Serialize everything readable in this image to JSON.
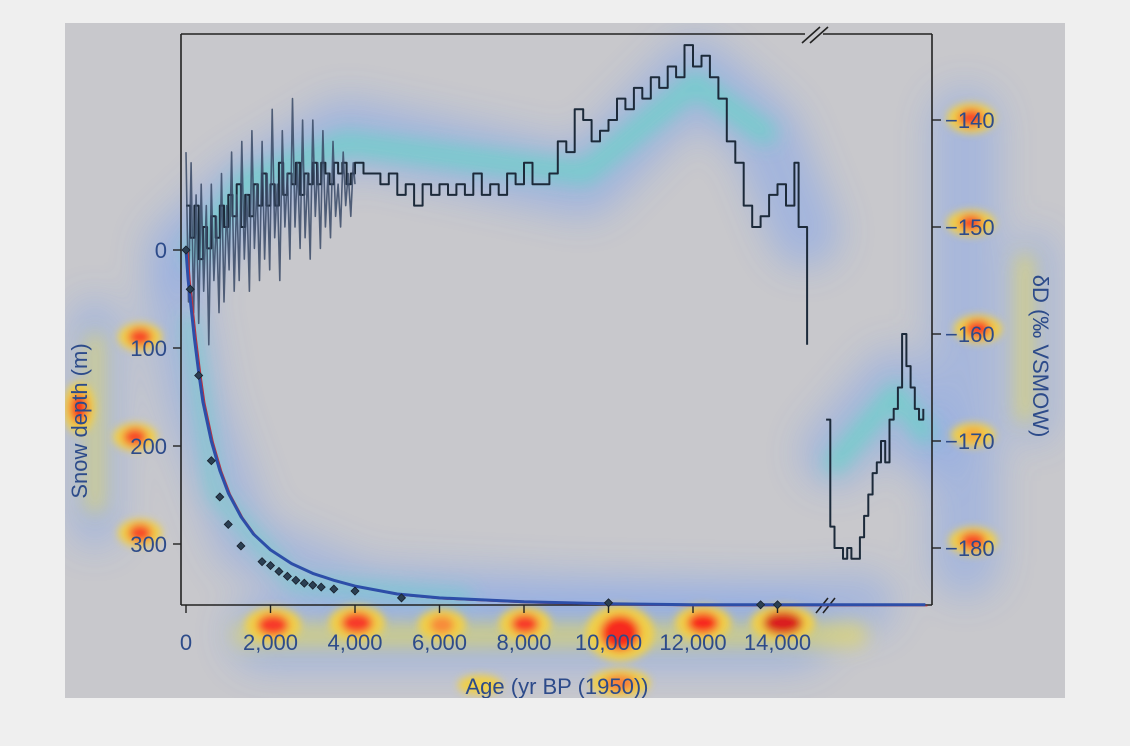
{
  "chart_data": {
    "type": "line",
    "xlabel": "Age (yr BP (1950))",
    "ylabel_left": "Snow depth (m)",
    "ylabel_right": "δD (‰ VSMOW)",
    "x_ticks": [
      "0",
      "2,000",
      "4,000",
      "6,000",
      "8,000",
      "10,000",
      "12,000",
      "14,000"
    ],
    "x_tick_values": [
      0,
      2000,
      4000,
      6000,
      8000,
      10000,
      12000,
      14000
    ],
    "left_ticks": [
      "0",
      "100",
      "200",
      "300"
    ],
    "left_tick_values": [
      0,
      100,
      200,
      300
    ],
    "right_ticks": [
      "−140",
      "−150",
      "−160",
      "−170",
      "−180"
    ],
    "right_tick_values": [
      -140,
      -150,
      -160,
      -170,
      -180
    ],
    "xlim": [
      0,
      17500
    ],
    "axis_break_x": 15000,
    "ylim_left": [
      -220,
      365
    ],
    "ylim_right": [
      -185,
      -130
    ],
    "heatmap_overlay": true,
    "series": [
      {
        "axis": "right",
        "style": "step",
        "color": "#1c2a3a",
        "x": [
          0,
          100,
          200,
          300,
          400,
          500,
          600,
          700,
          800,
          900,
          1000,
          1100,
          1200,
          1300,
          1400,
          1500,
          1600,
          1700,
          1800,
          1900,
          2000,
          2100,
          2200,
          2300,
          2400,
          2500,
          2600,
          2700,
          2800,
          2900,
          3000,
          3100,
          3200,
          3300,
          3400,
          3500,
          3600,
          3700,
          3800,
          3900,
          4000,
          4200,
          4400,
          4600,
          4800,
          5000,
          5200,
          5400,
          5600,
          5800,
          6000,
          6200,
          6400,
          6600,
          6800,
          7000,
          7200,
          7400,
          7600,
          7800,
          8000,
          8200,
          8400,
          8600,
          8800,
          9000,
          9200,
          9400,
          9600,
          9800,
          10000,
          10200,
          10400,
          10600,
          10800,
          11000,
          11200,
          11400,
          11600,
          11800,
          12000,
          12200,
          12400,
          12600,
          12800,
          13000,
          13200,
          13400,
          13600,
          13800,
          14000,
          14200,
          14400,
          14500,
          14700
        ],
        "y": [
          -148,
          -151,
          -148,
          -153,
          -150,
          -152,
          -149,
          -151,
          -148,
          -150,
          -147,
          -149,
          -146,
          -150,
          -147,
          -149,
          -146,
          -148,
          -145,
          -148,
          -146,
          -148,
          -144,
          -147,
          -145,
          -146,
          -144,
          -147,
          -145,
          -146,
          -144,
          -146,
          -144,
          -145,
          -146,
          -144,
          -145,
          -144,
          -146,
          -145,
          -144,
          -145,
          -145,
          -146,
          -145,
          -147,
          -146,
          -148,
          -146,
          -147,
          -146,
          -147,
          -146,
          -147,
          -145,
          -147,
          -146,
          -147,
          -145,
          -146,
          -144,
          -146,
          -146,
          -145,
          -142,
          -143,
          -139,
          -140,
          -142,
          -141,
          -140,
          -138,
          -139,
          -137,
          -138,
          -136,
          -137,
          -135,
          -136,
          -133,
          -135,
          -134,
          -136,
          -138,
          -142,
          -144,
          -148,
          -150,
          -149,
          -147,
          -146,
          -148,
          -144,
          -150,
          -161
        ],
        "name": ""
      },
      {
        "axis": "right",
        "style": "step",
        "color": "#1c2a3a",
        "x": [
          15150,
          15250,
          15350,
          15450,
          15550,
          15650,
          15750,
          15850,
          15950,
          16050,
          16150,
          16250,
          16350,
          16450,
          16550,
          16650,
          16750,
          16850,
          16950,
          17050,
          17150,
          17250,
          17350,
          17450
        ],
        "y": [
          -168,
          -178,
          -180,
          -180,
          -181,
          -180,
          -181,
          -181,
          -179,
          -177,
          -175,
          -173,
          -172,
          -170,
          -172,
          -168,
          -167,
          -165,
          -160,
          -163,
          -165,
          -167,
          -168,
          -167
        ],
        "name": ""
      },
      {
        "axis": "right",
        "style": "line",
        "color": "#3a4a66",
        "x": [
          0,
          60,
          120,
          180,
          240,
          300,
          360,
          420,
          480,
          540,
          600,
          660,
          720,
          780,
          840,
          900,
          960,
          1020,
          1080,
          1140,
          1200,
          1260,
          1320,
          1380,
          1440,
          1500,
          1560,
          1620,
          1680,
          1740,
          1800,
          1860,
          1920,
          1980,
          2040,
          2100,
          2160,
          2220,
          2280,
          2340,
          2400,
          2460,
          2520,
          2580,
          2640,
          2700,
          2760,
          2820,
          2880,
          2940,
          3000,
          3060,
          3120,
          3180,
          3240,
          3300,
          3360,
          3420,
          3480,
          3540,
          3600,
          3660,
          3720,
          3780,
          3840,
          3900,
          3960,
          4000
        ],
        "y": [
          -143,
          -157,
          -144,
          -158,
          -147,
          -159,
          -146,
          -156,
          -148,
          -161,
          -146,
          -155,
          -149,
          -158,
          -145,
          -157,
          -148,
          -154,
          -143,
          -156,
          -147,
          -155,
          -142,
          -153,
          -147,
          -156,
          -141,
          -152,
          -146,
          -155,
          -142,
          -153,
          -145,
          -154,
          -139,
          -151,
          -146,
          -155,
          -141,
          -150,
          -145,
          -153,
          -138,
          -150,
          -144,
          -152,
          -140,
          -151,
          -145,
          -153,
          -140,
          -149,
          -144,
          -152,
          -141,
          -150,
          -145,
          -151,
          -142,
          -149,
          -146,
          -150,
          -143,
          -148,
          -145,
          -149,
          -144,
          -146
        ],
        "name": ""
      },
      {
        "axis": "left",
        "style": "curve",
        "color": "#2d4ea8",
        "x": [
          0,
          50,
          100,
          200,
          300,
          400,
          600,
          800,
          1000,
          1300,
          1600,
          2000,
          2500,
          3000,
          3500,
          4000,
          5000,
          6000,
          8000,
          10000,
          12000,
          14000,
          15000,
          17500
        ],
        "y": [
          0,
          30,
          50,
          90,
          125,
          155,
          195,
          225,
          248,
          272,
          290,
          306,
          320,
          330,
          337,
          343,
          351,
          355,
          359,
          361,
          362,
          362,
          362,
          362
        ],
        "name": ""
      }
    ],
    "markers": {
      "axis": "left",
      "x": [
        0,
        100,
        300,
        600,
        800,
        1000,
        1300,
        1800,
        2000,
        2200,
        2400,
        2600,
        2800,
        3000,
        3200,
        3500,
        4000,
        5100,
        10000,
        13600,
        14000
      ],
      "y": [
        0,
        40,
        128,
        215,
        252,
        280,
        302,
        318,
        322,
        328,
        333,
        337,
        340,
        342,
        344,
        346,
        348,
        355,
        360,
        362,
        362
      ]
    }
  }
}
